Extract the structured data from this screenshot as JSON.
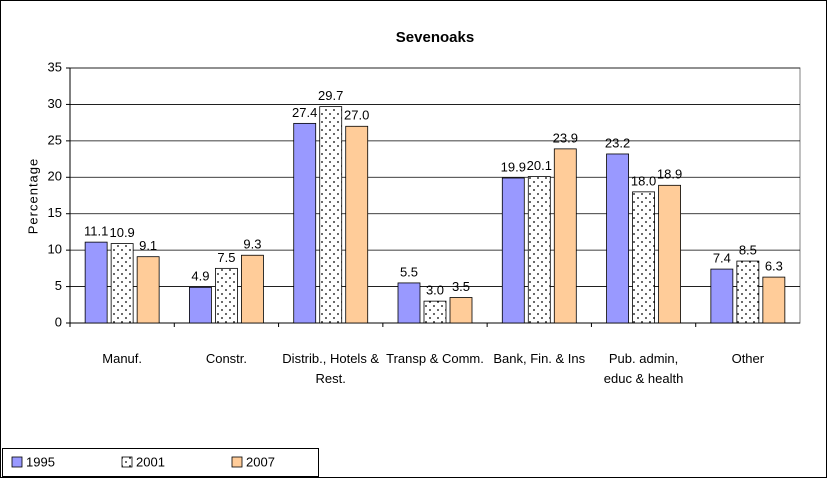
{
  "chart_data": {
    "type": "bar",
    "title": "Sevenoaks",
    "y_label": "Percentage",
    "categories": [
      "Manuf.",
      "Constr.",
      "Distrib., Hotels & Rest.",
      "Transp & Comm.",
      "Bank, Fin. & Ins",
      "Pub. admin, educ & health",
      "Other"
    ],
    "series": [
      {
        "name": "1995",
        "color": "#9999ff",
        "values": [
          11.1,
          4.9,
          27.4,
          5.5,
          19.9,
          23.2,
          7.4
        ],
        "value_labels": [
          "11.1",
          "4.9",
          "27.4",
          "5.5",
          "19.9",
          "23.2",
          "7.4"
        ]
      },
      {
        "name": "2001",
        "color": "#ffffff",
        "pattern": "dotted",
        "values": [
          10.9,
          7.5,
          29.7,
          3.0,
          20.1,
          18.0,
          8.5
        ],
        "value_labels": [
          "10.9",
          "7.5",
          "29.7",
          "3.0",
          "20.1",
          "18.0",
          "8.5"
        ]
      },
      {
        "name": "2007",
        "color": "#ffcc99",
        "values": [
          9.1,
          9.3,
          27.0,
          3.5,
          23.9,
          18.9,
          6.3
        ],
        "value_labels": [
          "9.1",
          "9.3",
          "27.0",
          "3.5",
          "23.9",
          "18.9",
          "6.3"
        ]
      }
    ],
    "ylim": [
      0,
      35
    ],
    "yticks": [
      0,
      5,
      10,
      15,
      20,
      25,
      30,
      35
    ],
    "grid": true,
    "legend": "bottom-left"
  }
}
